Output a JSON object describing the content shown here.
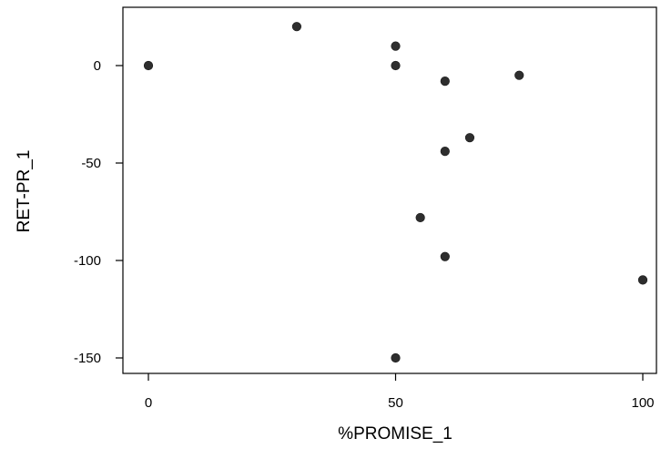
{
  "chart_data": {
    "type": "scatter",
    "title": "",
    "xlabel": "%PROMISE_1",
    "ylabel": "RET-PR_1",
    "xlim": [
      -5,
      100
    ],
    "ylim": [
      -156,
      27
    ],
    "xticks": [
      0,
      50,
      100
    ],
    "yticks": [
      0,
      -50,
      -100,
      -150
    ],
    "xtick_labels": [
      "0",
      "50",
      "100"
    ],
    "ytick_labels": [
      "0",
      "-50",
      "-100",
      "-150"
    ],
    "grid": false,
    "legend": "none",
    "marker_color": "#2e2e2e",
    "points": [
      {
        "x": 0,
        "y": 0
      },
      {
        "x": 30,
        "y": 20
      },
      {
        "x": 50,
        "y": 10
      },
      {
        "x": 50,
        "y": 0
      },
      {
        "x": 50,
        "y": -150
      },
      {
        "x": 55,
        "y": -78
      },
      {
        "x": 60,
        "y": -8
      },
      {
        "x": 60,
        "y": -44
      },
      {
        "x": 60,
        "y": -98
      },
      {
        "x": 65,
        "y": -37
      },
      {
        "x": 75,
        "y": -5
      },
      {
        "x": 100,
        "y": -110
      }
    ]
  }
}
